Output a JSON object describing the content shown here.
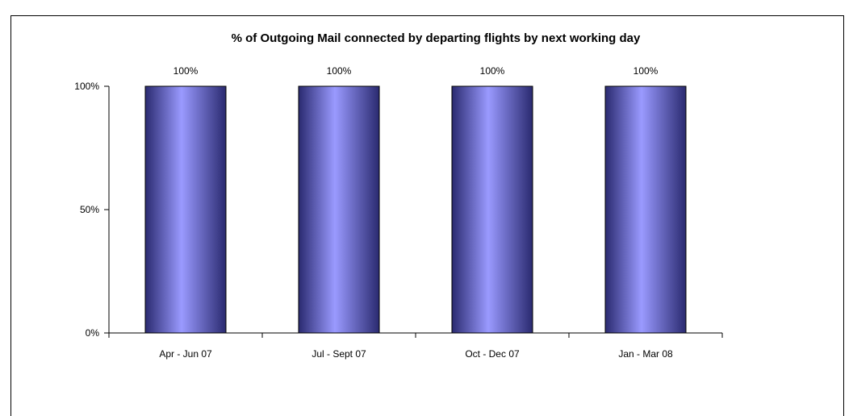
{
  "chart_data": {
    "type": "bar",
    "title": "% of Outgoing Mail connected by departing flights by next working day",
    "categories": [
      "Apr - Jun 07",
      "Jul - Sept 07",
      "Oct - Dec 07",
      "Jan - Mar 08"
    ],
    "values": [
      100,
      100,
      100,
      100
    ],
    "value_labels": [
      "100%",
      "100%",
      "100%",
      "100%"
    ],
    "ylim": [
      0,
      100
    ],
    "yticks": [
      0,
      50,
      100
    ],
    "ytick_labels": [
      "0%",
      "50%",
      "100%"
    ],
    "xlabel": "",
    "ylabel": "",
    "grid": false,
    "legend": "none",
    "colors": {
      "bar_light": "#9a9aff",
      "bar_dark": "#2a2a70",
      "bar_outline": "#000000",
      "axis": "#000000"
    }
  }
}
